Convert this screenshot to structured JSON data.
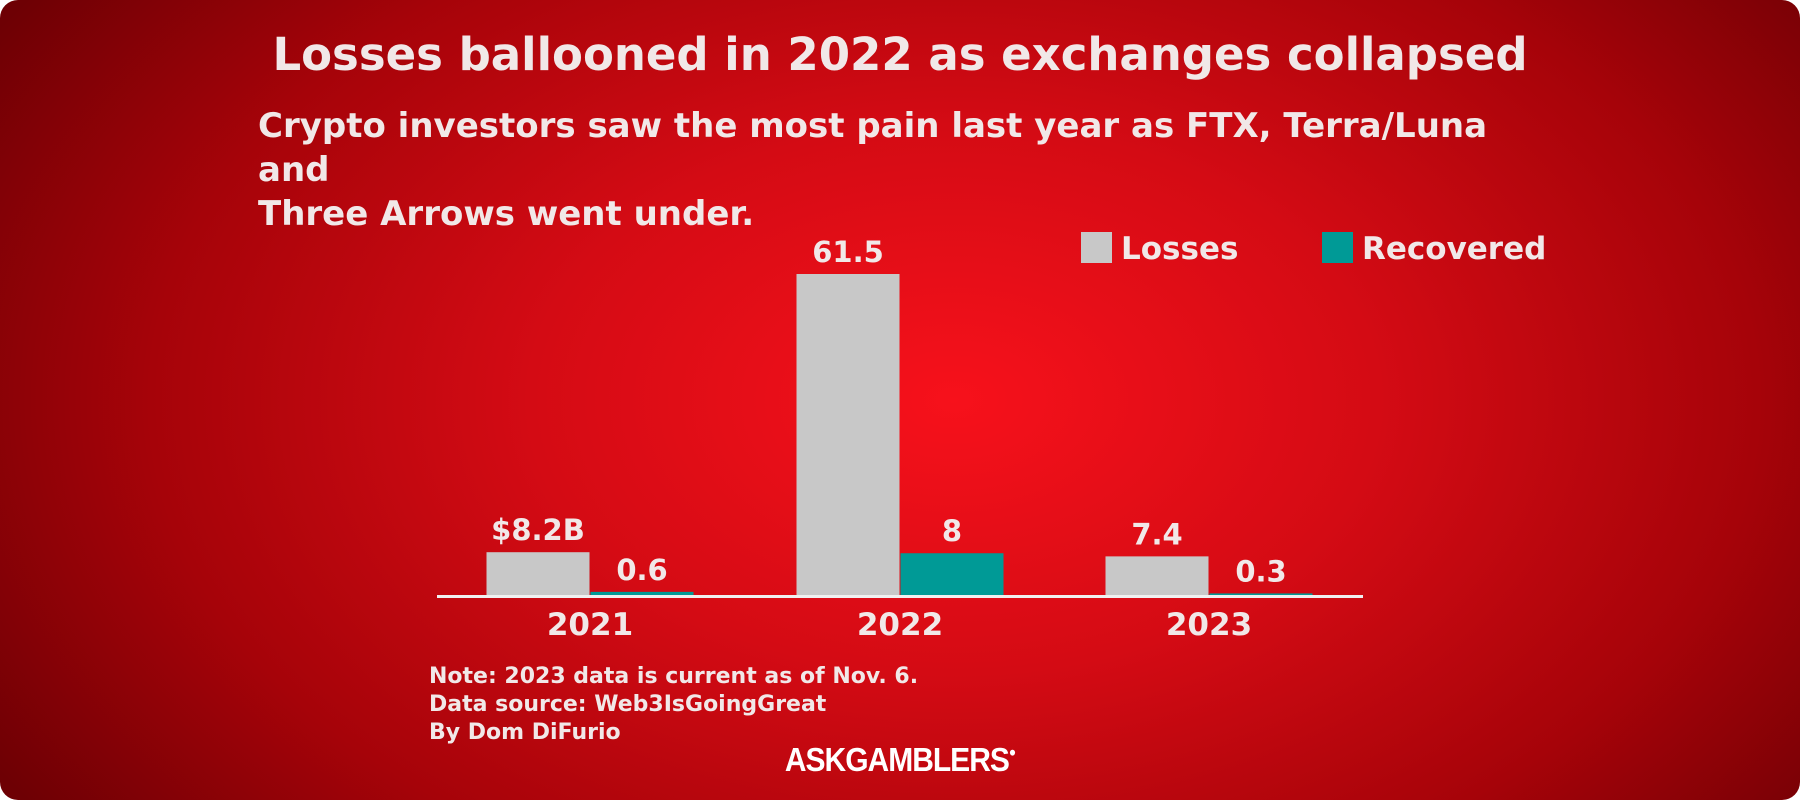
{
  "title": "Losses ballooned in 2022 as exchanges collapsed",
  "subtitle": "Crypto investors saw the most pain last year as FTX, Terra/Luna and\n Three Arrows went under.",
  "notes": [
    "Note: 2023 data is current as of Nov. 6.",
    "Data source: Web3IsGoingGreat",
    "By Dom DiFurio"
  ],
  "brand": "ASKGAMBLERS",
  "colors": {
    "background_center": "#f7111b",
    "background_edge": "#6e0004",
    "losses": "#c8c8c8",
    "recovered": "#009a96",
    "text": "#f1e8e8"
  },
  "chart_data": {
    "type": "bar",
    "categories": [
      "2021",
      "2022",
      "2023"
    ],
    "series": [
      {
        "name": "Losses",
        "values": [
          8.2,
          61.5,
          7.4
        ],
        "labels": [
          "$8.2B",
          "61.5",
          "7.4"
        ],
        "color": "#c8c8c8"
      },
      {
        "name": "Recovered",
        "values": [
          0.6,
          8,
          0.3
        ],
        "labels": [
          "0.6",
          "8",
          "0.3"
        ],
        "color": "#009a96"
      }
    ],
    "ylim": [
      0,
      61.5
    ],
    "legend": "top-right",
    "grid": false
  }
}
